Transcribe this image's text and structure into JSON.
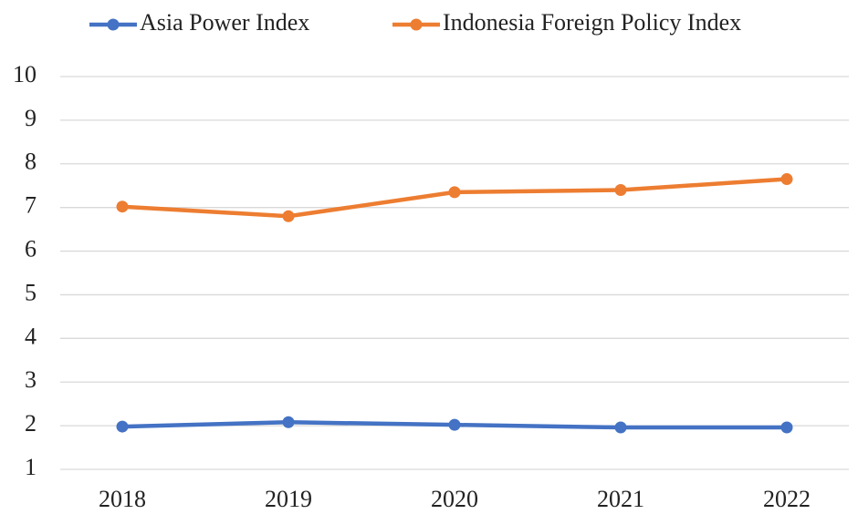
{
  "chart_data": {
    "type": "line",
    "categories": [
      "2018",
      "2019",
      "2020",
      "2021",
      "2022"
    ],
    "series": [
      {
        "name": "Asia Power Index",
        "color": "#4472c4",
        "values": [
          1.98,
          2.08,
          2.02,
          1.96,
          1.96
        ]
      },
      {
        "name": "Indonesia Foreign Policy Index",
        "color": "#ed7d31",
        "values": [
          7.02,
          6.8,
          7.35,
          7.4,
          7.65
        ]
      }
    ],
    "ylim": [
      1,
      10
    ],
    "yticks": [
      1,
      2,
      3,
      4,
      5,
      6,
      7,
      8,
      9,
      10
    ],
    "grid": true,
    "legend": "top"
  }
}
